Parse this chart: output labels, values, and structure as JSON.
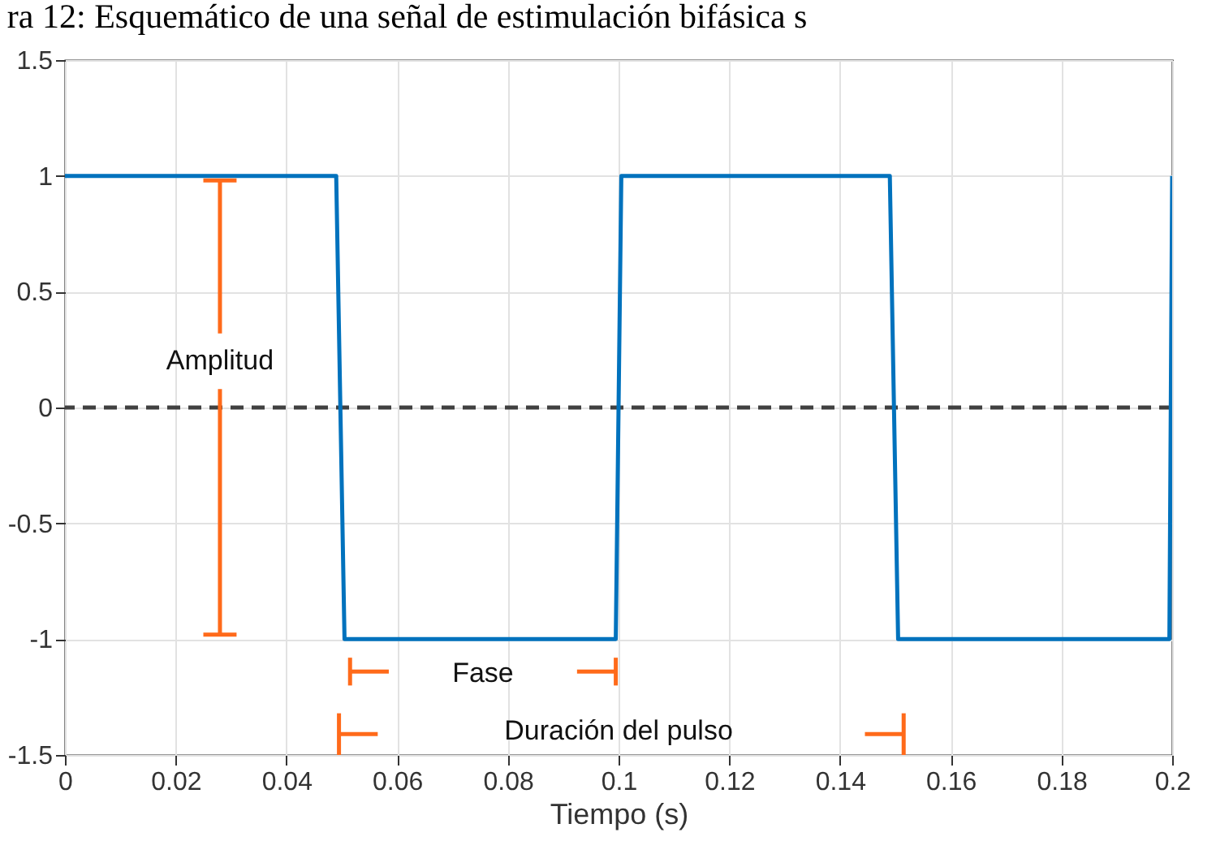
{
  "chart_data": {
    "type": "line",
    "title": "ra 12: Esquemático de una señal de estimulación bifásica s",
    "xlabel": "Tiempo (s)",
    "x": [
      0,
      0.049,
      0.0505,
      0.0995,
      0.1005,
      0.149,
      0.1505,
      0.1995,
      0.2
    ],
    "series": [
      {
        "color": "#0072bd",
        "values": [
          1,
          1,
          -1,
          -1,
          1,
          1,
          -1,
          -1,
          1
        ]
      }
    ],
    "xlim": [
      0,
      0.2
    ],
    "xticks": [
      0,
      0.02,
      0.04,
      0.06,
      0.08,
      0.1,
      0.12,
      0.14,
      0.16,
      0.18,
      0.2
    ],
    "ylim": [
      -1.5,
      1.5
    ],
    "yticks": [
      -1.5,
      -1,
      -0.5,
      0,
      0.5,
      1,
      1.5
    ],
    "ref_lines": [
      {
        "axis": "y",
        "value": 0,
        "color": "#404040",
        "line_style": "dashed"
      }
    ],
    "annotations": [
      {
        "text": "Amplitud",
        "x": 0.028,
        "y": 1
      },
      "Fase",
      "Duración del pulso"
    ],
    "grid": true,
    "line_style": "solid",
    "marker": "none"
  }
}
